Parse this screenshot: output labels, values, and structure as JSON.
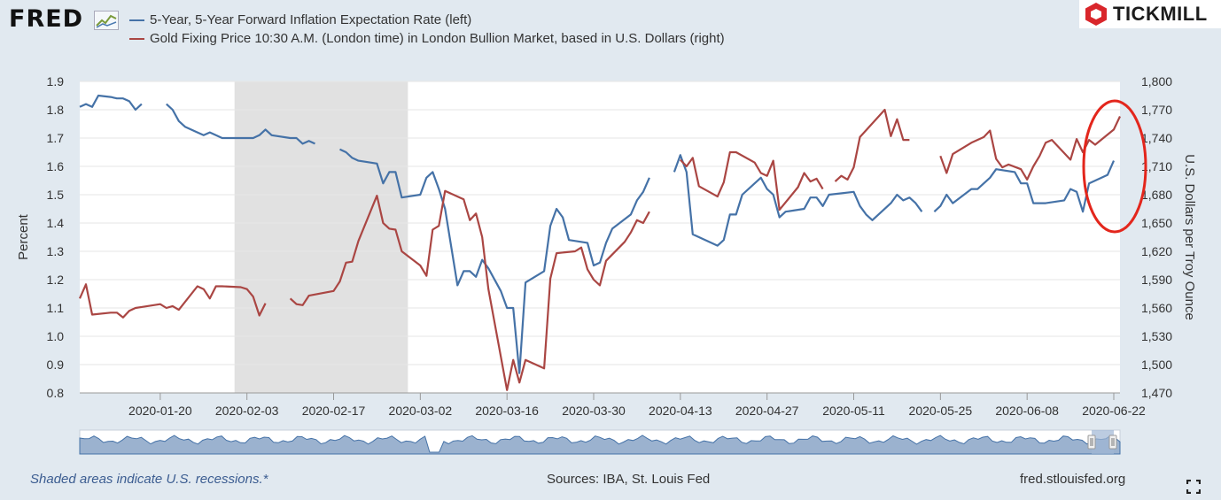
{
  "header": {
    "logo_text": "FRED",
    "brand": "TICKMILL",
    "legend": [
      {
        "label": "5-Year, 5-Year Forward Inflation Expectation Rate (left)",
        "color": "#4572a7"
      },
      {
        "label": "Gold Fixing Price 10:30 A.M. (London time) in London Bullion Market, based in U.S. Dollars (right)",
        "color": "#aa4643"
      }
    ]
  },
  "footer": {
    "recession_note": "Shaded areas indicate U.S. recessions.*",
    "sources": "Sources: IBA, St. Louis Fed",
    "url": "fred.stlouisfed.org"
  },
  "chart_data": {
    "type": "line",
    "title": "",
    "x_tick_labels": [
      "2020-01-20",
      "2020-02-03",
      "2020-02-17",
      "2020-03-02",
      "2020-03-16",
      "2020-03-30",
      "2020-04-13",
      "2020-04-27",
      "2020-05-11",
      "2020-05-25",
      "2020-06-08",
      "2020-06-22"
    ],
    "x_tick_days": [
      19,
      33,
      47,
      61,
      75,
      89,
      103,
      117,
      131,
      145,
      159,
      173
    ],
    "x_range_days": [
      6,
      174
    ],
    "recession_days": [
      31,
      59
    ],
    "y_left": {
      "label": "Percent",
      "range": [
        0.8,
        1.9
      ],
      "ticks": [
        "0.8",
        "0.9",
        "1.0",
        "1.1",
        "1.2",
        "1.3",
        "1.4",
        "1.5",
        "1.6",
        "1.7",
        "1.8",
        "1.9"
      ]
    },
    "y_right": {
      "label": "U.S. Dollars per Troy Ounce",
      "range": [
        1470,
        1800
      ],
      "ticks": [
        "1,470",
        "1,500",
        "1,530",
        "1,560",
        "1,590",
        "1,620",
        "1,650",
        "1,680",
        "1,710",
        "1,740",
        "1,770",
        "1,800"
      ]
    },
    "series": [
      {
        "name": "5-Year, 5-Year Forward Inflation Expectation Rate (left)",
        "axis": "left",
        "color": "#4572a7",
        "segments": [
          [
            [
              6,
              1.81
            ],
            [
              7,
              1.82
            ],
            [
              8,
              1.81
            ],
            [
              9,
              1.85
            ],
            [
              11,
              1.845
            ],
            [
              12,
              1.84
            ],
            [
              13,
              1.84
            ],
            [
              14,
              1.83
            ],
            [
              15,
              1.8
            ],
            [
              16,
              1.82
            ]
          ],
          [
            [
              20,
              1.82
            ],
            [
              21,
              1.8
            ],
            [
              22,
              1.76
            ],
            [
              23,
              1.74
            ],
            [
              25,
              1.72
            ],
            [
              26,
              1.71
            ],
            [
              27,
              1.72
            ],
            [
              28,
              1.71
            ],
            [
              29,
              1.7
            ],
            [
              30,
              1.7
            ],
            [
              34,
              1.7
            ],
            [
              35,
              1.71
            ],
            [
              36,
              1.73
            ],
            [
              37,
              1.71
            ],
            [
              40,
              1.7
            ],
            [
              41,
              1.7
            ],
            [
              42,
              1.68
            ],
            [
              43,
              1.69
            ],
            [
              44,
              1.68
            ]
          ],
          [
            [
              48,
              1.66
            ],
            [
              49,
              1.65
            ],
            [
              50,
              1.63
            ],
            [
              51,
              1.62
            ],
            [
              54,
              1.61
            ],
            [
              55,
              1.54
            ],
            [
              56,
              1.58
            ],
            [
              57,
              1.58
            ],
            [
              58,
              1.49
            ],
            [
              61,
              1.5
            ],
            [
              62,
              1.56
            ],
            [
              63,
              1.58
            ],
            [
              64,
              1.52
            ],
            [
              65,
              1.45
            ],
            [
              67,
              1.18
            ],
            [
              68,
              1.23
            ],
            [
              69,
              1.23
            ],
            [
              70,
              1.21
            ],
            [
              71,
              1.27
            ],
            [
              72,
              1.24
            ],
            [
              74,
              1.16
            ],
            [
              75,
              1.1
            ],
            [
              76,
              1.1
            ],
            [
              77,
              0.87
            ],
            [
              78,
              1.19
            ],
            [
              81,
              1.23
            ],
            [
              82,
              1.39
            ],
            [
              83,
              1.45
            ],
            [
              84,
              1.42
            ],
            [
              85,
              1.34
            ],
            [
              88,
              1.33
            ],
            [
              89,
              1.25
            ],
            [
              90,
              1.26
            ],
            [
              91,
              1.33
            ],
            [
              92,
              1.38
            ],
            [
              95,
              1.43
            ],
            [
              96,
              1.48
            ],
            [
              97,
              1.51
            ],
            [
              98,
              1.56
            ]
          ],
          [
            [
              102,
              1.58
            ],
            [
              103,
              1.64
            ],
            [
              104,
              1.58
            ],
            [
              105,
              1.36
            ],
            [
              109,
              1.32
            ],
            [
              110,
              1.34
            ],
            [
              111,
              1.43
            ],
            [
              112,
              1.43
            ],
            [
              113,
              1.5
            ],
            [
              115,
              1.54
            ],
            [
              116,
              1.56
            ],
            [
              117,
              1.52
            ],
            [
              118,
              1.5
            ],
            [
              119,
              1.42
            ],
            [
              120,
              1.44
            ],
            [
              123,
              1.45
            ],
            [
              124,
              1.49
            ],
            [
              125,
              1.49
            ],
            [
              126,
              1.46
            ],
            [
              127,
              1.5
            ],
            [
              131,
              1.51
            ],
            [
              132,
              1.46
            ],
            [
              133,
              1.43
            ],
            [
              134,
              1.41
            ],
            [
              137,
              1.47
            ],
            [
              138,
              1.5
            ],
            [
              139,
              1.48
            ],
            [
              140,
              1.49
            ],
            [
              141,
              1.47
            ],
            [
              142,
              1.44
            ]
          ],
          [
            [
              144,
              1.44
            ],
            [
              145,
              1.46
            ],
            [
              146,
              1.5
            ],
            [
              147,
              1.47
            ],
            [
              150,
              1.52
            ],
            [
              151,
              1.52
            ],
            [
              153,
              1.56
            ],
            [
              154,
              1.59
            ],
            [
              157,
              1.58
            ],
            [
              158,
              1.54
            ],
            [
              159,
              1.54
            ],
            [
              160,
              1.47
            ],
            [
              162,
              1.47
            ],
            [
              165,
              1.48
            ],
            [
              166,
              1.52
            ],
            [
              167,
              1.51
            ],
            [
              168,
              1.44
            ],
            [
              169,
              1.54
            ],
            [
              172,
              1.57
            ],
            [
              173,
              1.62
            ]
          ]
        ]
      },
      {
        "name": "Gold Fixing Price 10:30 A.M. (London time) in London Bullion Market, based in U.S. Dollars (right)",
        "axis": "right",
        "color": "#aa4643",
        "segments": [
          [
            [
              6,
              1570
            ],
            [
              7,
              1585
            ],
            [
              8,
              1553
            ],
            [
              11,
              1555
            ],
            [
              12,
              1555
            ],
            [
              13,
              1550
            ],
            [
              14,
              1557
            ],
            [
              15,
              1560
            ],
            [
              16,
              1561
            ],
            [
              19,
              1564
            ],
            [
              20,
              1560
            ],
            [
              21,
              1562
            ],
            [
              22,
              1558
            ],
            [
              25,
              1583
            ],
            [
              26,
              1580
            ],
            [
              27,
              1570
            ],
            [
              28,
              1583
            ],
            [
              29,
              1583
            ],
            [
              32,
              1582
            ],
            [
              33,
              1580
            ],
            [
              34,
              1572
            ],
            [
              35,
              1552
            ],
            [
              36,
              1565
            ]
          ],
          [
            [
              40,
              1570
            ],
            [
              41,
              1564
            ],
            [
              42,
              1563
            ],
            [
              43,
              1573
            ],
            [
              47,
              1578
            ],
            [
              48,
              1588
            ],
            [
              49,
              1608
            ],
            [
              50,
              1609
            ],
            [
              51,
              1631
            ],
            [
              54,
              1679
            ],
            [
              55,
              1650
            ],
            [
              56,
              1644
            ],
            [
              57,
              1643
            ],
            [
              58,
              1620
            ],
            [
              61,
              1605
            ],
            [
              62,
              1594
            ],
            [
              63,
              1643
            ],
            [
              64,
              1647
            ],
            [
              65,
              1684
            ],
            [
              68,
              1675
            ],
            [
              69,
              1653
            ],
            [
              70,
              1660
            ],
            [
              71,
              1635
            ],
            [
              72,
              1580
            ],
            [
              75,
              1473
            ],
            [
              76,
              1505
            ],
            [
              77,
              1481
            ],
            [
              78,
              1505
            ],
            [
              81,
              1496
            ],
            [
              82,
              1591
            ],
            [
              83,
              1618
            ],
            [
              86,
              1620
            ],
            [
              87,
              1624
            ],
            [
              88,
              1601
            ],
            [
              89,
              1590
            ],
            [
              90,
              1584
            ],
            [
              91,
              1610
            ],
            [
              94,
              1630
            ],
            [
              95,
              1640
            ],
            [
              96,
              1653
            ],
            [
              97,
              1650
            ],
            [
              98,
              1662
            ]
          ],
          [
            [
              103,
              1717
            ],
            [
              104,
              1710
            ],
            [
              105,
              1719
            ],
            [
              106,
              1689
            ],
            [
              109,
              1678
            ],
            [
              110,
              1693
            ],
            [
              111,
              1725
            ],
            [
              112,
              1725
            ],
            [
              115,
              1714
            ],
            [
              116,
              1703
            ],
            [
              117,
              1700
            ],
            [
              118,
              1716
            ],
            [
              119,
              1664
            ],
            [
              122,
              1688
            ],
            [
              123,
              1703
            ],
            [
              124,
              1694
            ],
            [
              125,
              1697
            ],
            [
              126,
              1686
            ]
          ],
          [
            [
              128,
              1694
            ],
            [
              129,
              1700
            ],
            [
              130,
              1696
            ],
            [
              131,
              1709
            ],
            [
              132,
              1741
            ],
            [
              136,
              1770
            ],
            [
              137,
              1742
            ],
            [
              138,
              1760
            ],
            [
              139,
              1738
            ],
            [
              140,
              1738
            ]
          ],
          [
            [
              145,
              1721
            ],
            [
              146,
              1703
            ],
            [
              147,
              1723
            ],
            [
              150,
              1735
            ],
            [
              152,
              1741
            ],
            [
              153,
              1748
            ],
            [
              154,
              1718
            ],
            [
              155,
              1709
            ],
            [
              156,
              1712
            ],
            [
              158,
              1707
            ],
            [
              159,
              1696
            ],
            [
              160,
              1710
            ],
            [
              161,
              1721
            ],
            [
              162,
              1735
            ],
            [
              163,
              1738
            ],
            [
              166,
              1717
            ],
            [
              167,
              1739
            ],
            [
              168,
              1725
            ],
            [
              169,
              1738
            ],
            [
              170,
              1733
            ],
            [
              173,
              1749
            ],
            [
              174,
              1763
            ]
          ]
        ]
      }
    ]
  }
}
